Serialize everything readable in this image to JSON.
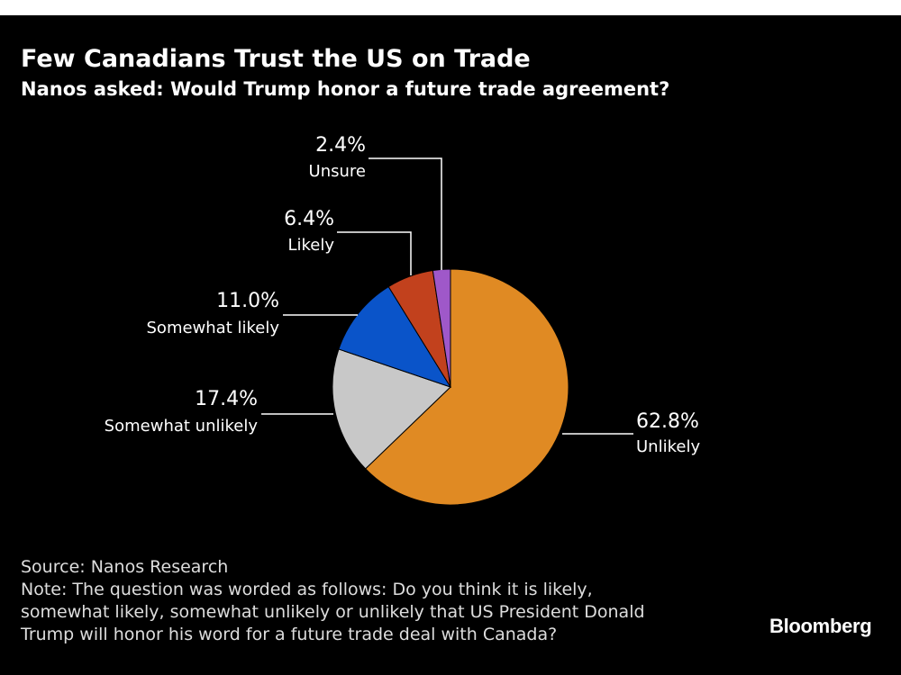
{
  "title": "Few Canadians Trust the US on Trade",
  "subtitle": "Nanos asked: Would Trump honor a future trade agreement?",
  "chart_data": {
    "type": "pie",
    "title": "Few Canadians Trust the US on Trade",
    "subtitle": "Nanos asked: Would Trump honor a future trade agreement?",
    "labels": [
      "Unlikely",
      "Somewhat unlikely",
      "Somewhat likely",
      "Likely",
      "Unsure"
    ],
    "values": [
      62.8,
      17.4,
      11.0,
      6.4,
      2.4
    ],
    "value_labels": [
      "62.8%",
      "17.4%",
      "11.0%",
      "6.4%",
      "2.4%"
    ],
    "colors": [
      "#E08A23",
      "#C8C8C8",
      "#0A54C9",
      "#C2411D",
      "#9F58C9"
    ]
  },
  "footer": {
    "source": "Source: Nanos Research",
    "note_lines": [
      "Note: The question was worded as follows: Do you think it is likely,",
      "somewhat likely, somewhat unlikely or unlikely that US President Donald",
      "Trump will honor his word for a future trade deal with Canada?"
    ]
  },
  "brand": "Bloomberg"
}
